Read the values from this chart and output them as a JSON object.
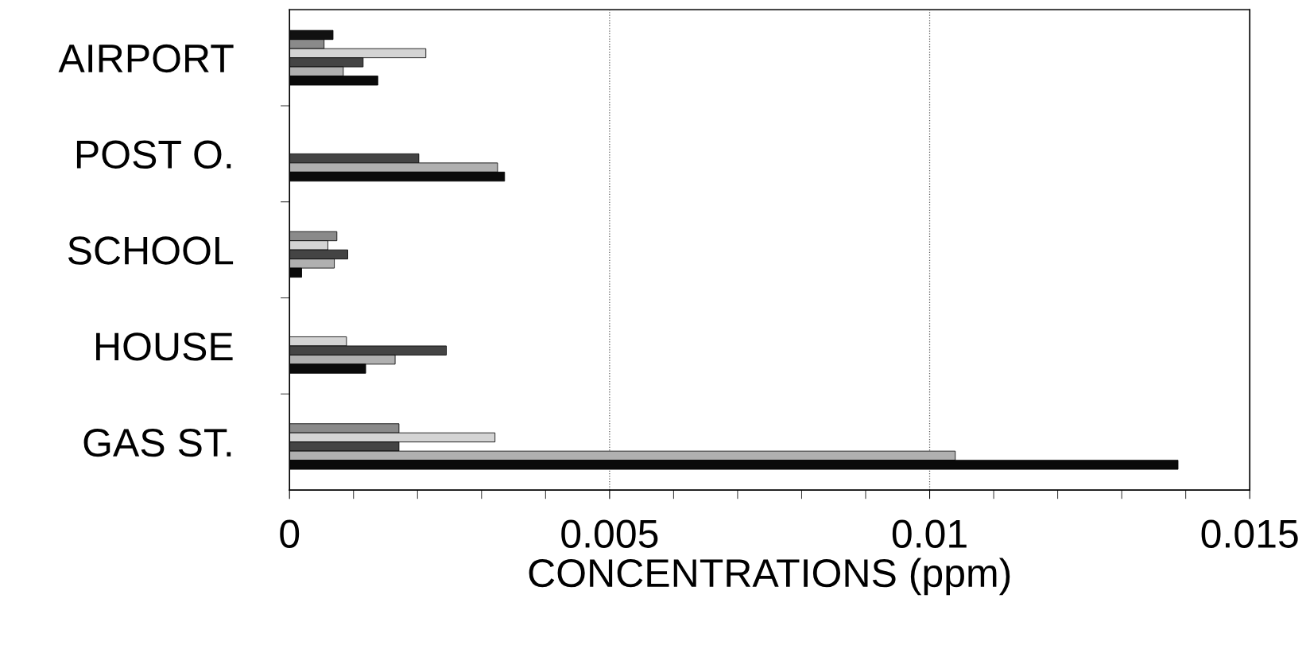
{
  "chart_data": {
    "type": "bar",
    "orientation": "horizontal",
    "categories": [
      "AIRPORT",
      "POST O.",
      "SCHOOL",
      "HOUSE",
      "GAS ST."
    ],
    "xlabel": "CONCENTRATIONS (ppm)",
    "series": [
      {
        "color": "#111111",
        "values": [
          0.00068,
          null,
          null,
          null,
          null
        ]
      },
      {
        "color": "#8a8a8a",
        "values": [
          0.00054,
          null,
          0.00074,
          null,
          0.00171
        ]
      },
      {
        "color": "#d4d4d4",
        "values": [
          0.00213,
          null,
          0.0006,
          0.00089,
          0.00321
        ]
      },
      {
        "color": "#444444",
        "values": [
          0.00115,
          0.00202,
          0.00091,
          0.00245,
          0.00171
        ]
      },
      {
        "color": "#b0b0b0",
        "values": [
          0.00084,
          0.00325,
          0.0007,
          0.00165,
          0.0104
        ]
      },
      {
        "color": "#0a0a0a",
        "values": [
          0.00138,
          0.00336,
          0.00019,
          0.00119,
          0.01388
        ]
      }
    ],
    "xlim": [
      0,
      0.015
    ],
    "xticks": [
      0,
      {
        "value": 0.001,
        "label": null
      },
      {
        "value": 0.002,
        "label": null
      },
      {
        "value": 0.003,
        "label": null
      },
      {
        "value": 0.004,
        "label": null
      },
      0.005,
      {
        "value": 0.006,
        "label": null
      },
      {
        "value": 0.007,
        "label": null
      },
      {
        "value": 0.008,
        "label": null
      },
      {
        "value": 0.009,
        "label": null
      },
      0.01,
      {
        "value": 0.011,
        "label": null
      },
      {
        "value": 0.012,
        "label": null
      },
      {
        "value": 0.013,
        "label": null
      },
      {
        "value": 0.014,
        "label": null
      },
      0.015
    ],
    "grid": "x"
  }
}
